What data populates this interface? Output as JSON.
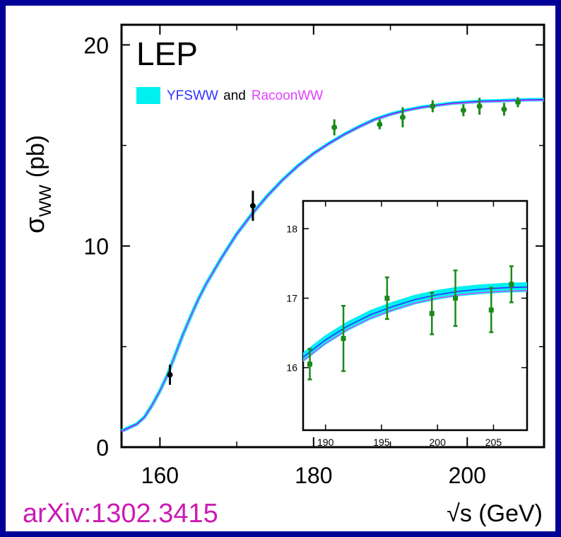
{
  "colors": {
    "frame": "#000099",
    "band": "#00f0f0",
    "yfsww_line": "#3030ff",
    "racoonww_line": "#e040ff",
    "data_green": "#1a8a1a",
    "data_black": "#000000",
    "citation": "#cc1ab3"
  },
  "citation": "arXiv:1302.3415",
  "chart_data": [
    {
      "id": "main",
      "type": "line",
      "title": "LEP",
      "xlabel": "√s (GeV)",
      "ylabel": "σWW (pb)",
      "ylabel_main": "σ",
      "ylabel_sub": "WW",
      "ylabel_unit": "(pb)",
      "xlim": [
        155,
        210
      ],
      "ylim": [
        0,
        21
      ],
      "xticks": [
        160,
        180,
        200
      ],
      "yticks": [
        0,
        10,
        20
      ],
      "legend": {
        "position": "top-left",
        "entries": [
          {
            "text": "YFSWW",
            "color": "#3030ff"
          },
          {
            "text": "and",
            "color": "#000000"
          },
          {
            "text": "RacoonWW",
            "color": "#e040ff"
          }
        ]
      },
      "theory_curve": {
        "x": [
          155,
          157,
          158,
          159,
          160,
          161,
          162,
          163,
          164,
          165,
          166,
          168,
          170,
          172,
          174,
          176,
          178,
          180,
          182,
          184,
          186,
          188,
          190,
          192,
          194,
          196,
          198,
          200,
          202,
          204,
          206,
          208,
          210
        ],
        "y": [
          0.8,
          1.15,
          1.5,
          2.1,
          2.8,
          3.6,
          4.6,
          5.6,
          6.5,
          7.35,
          8.1,
          9.4,
          10.6,
          11.6,
          12.5,
          13.3,
          14.0,
          14.6,
          15.1,
          15.55,
          15.95,
          16.3,
          16.55,
          16.75,
          16.9,
          17.0,
          17.1,
          17.15,
          17.2,
          17.22,
          17.25,
          17.27,
          17.28
        ]
      },
      "points": [
        {
          "x": 161.3,
          "y": 3.6,
          "err": 0.5,
          "color": "black"
        },
        {
          "x": 172.1,
          "y": 12.0,
          "err": 0.75,
          "color": "black"
        },
        {
          "x": 182.7,
          "y": 15.9,
          "err": 0.4,
          "color": "green"
        },
        {
          "x": 188.6,
          "y": 16.05,
          "err": 0.25,
          "color": "green"
        },
        {
          "x": 191.6,
          "y": 16.4,
          "err": 0.5,
          "color": "green"
        },
        {
          "x": 195.5,
          "y": 16.95,
          "err": 0.3,
          "color": "green"
        },
        {
          "x": 199.5,
          "y": 16.75,
          "err": 0.3,
          "color": "green"
        },
        {
          "x": 201.6,
          "y": 16.95,
          "err": 0.42,
          "color": "green"
        },
        {
          "x": 204.8,
          "y": 16.8,
          "err": 0.32,
          "color": "green"
        },
        {
          "x": 206.6,
          "y": 17.15,
          "err": 0.25,
          "color": "green"
        }
      ]
    },
    {
      "id": "inset",
      "type": "line",
      "xlim": [
        188,
        208
      ],
      "ylim": [
        15.1,
        18.4
      ],
      "xticks": [
        190,
        195,
        200,
        205
      ],
      "yticks": [
        16,
        17,
        18
      ],
      "theory_curve": {
        "x": [
          188,
          190,
          192,
          194,
          196,
          198,
          200,
          202,
          204,
          206,
          208
        ],
        "y": [
          16.15,
          16.4,
          16.6,
          16.76,
          16.88,
          16.98,
          17.05,
          17.1,
          17.13,
          17.15,
          17.16
        ]
      },
      "band_halfwidth": 0.07,
      "racoonww_offset": -0.05,
      "points": [
        {
          "x": 188.6,
          "y": 16.05,
          "err": 0.22,
          "color": "green"
        },
        {
          "x": 191.6,
          "y": 16.42,
          "err": 0.47,
          "color": "green"
        },
        {
          "x": 195.5,
          "y": 17.0,
          "err": 0.3,
          "color": "green"
        },
        {
          "x": 199.5,
          "y": 16.78,
          "err": 0.3,
          "color": "green"
        },
        {
          "x": 201.6,
          "y": 17.0,
          "err": 0.4,
          "color": "green"
        },
        {
          "x": 204.8,
          "y": 16.83,
          "err": 0.32,
          "color": "green"
        },
        {
          "x": 206.6,
          "y": 17.2,
          "err": 0.26,
          "color": "green"
        }
      ]
    }
  ]
}
